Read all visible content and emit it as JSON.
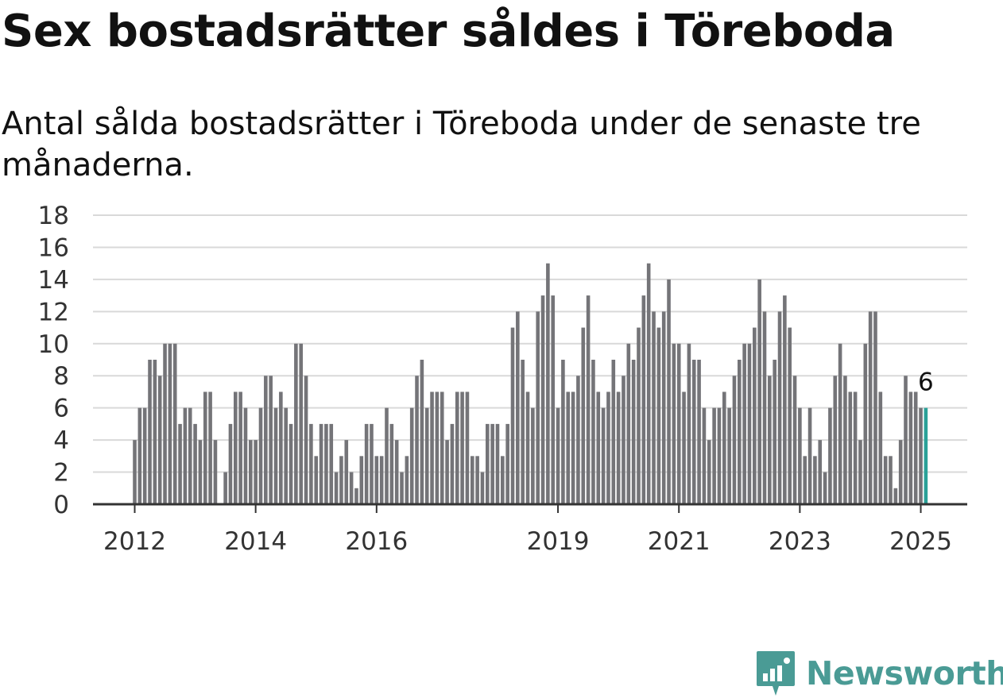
{
  "title": "Sex bostadsrätter såldes i Töreboda",
  "subtitle": "Antal sålda bostadsrätter i Töreboda under de senaste tre månaderna.",
  "brand": "Newsworthy",
  "colors": {
    "bar": "#747478",
    "highlight": "#2aa198",
    "grid": "#d9d9d9",
    "axis": "#333333",
    "brand": "#4a9b95"
  },
  "chart_data": {
    "type": "bar",
    "x_start": "2012-01",
    "x_interval": "month",
    "values": [
      4,
      6,
      6,
      9,
      9,
      8,
      10,
      10,
      10,
      5,
      6,
      6,
      5,
      4,
      7,
      7,
      4,
      0,
      2,
      5,
      7,
      7,
      6,
      4,
      4,
      6,
      8,
      8,
      6,
      7,
      6,
      5,
      10,
      10,
      8,
      5,
      3,
      5,
      5,
      5,
      2,
      3,
      4,
      2,
      1,
      3,
      5,
      5,
      3,
      3,
      6,
      5,
      4,
      2,
      3,
      6,
      8,
      9,
      6,
      7,
      7,
      7,
      4,
      5,
      7,
      7,
      7,
      3,
      3,
      2,
      5,
      5,
      5,
      3,
      5,
      11,
      12,
      9,
      7,
      6,
      12,
      13,
      15,
      13,
      6,
      9,
      7,
      7,
      8,
      11,
      13,
      9,
      7,
      6,
      7,
      9,
      7,
      8,
      10,
      9,
      11,
      13,
      15,
      12,
      11,
      12,
      14,
      10,
      10,
      7,
      10,
      9,
      9,
      6,
      4,
      6,
      6,
      7,
      6,
      8,
      9,
      10,
      10,
      11,
      14,
      12,
      8,
      9,
      12,
      13,
      11,
      8,
      6,
      3,
      6,
      3,
      4,
      2,
      6,
      8,
      10,
      8,
      7,
      7,
      4,
      10,
      12,
      12,
      7,
      3,
      3,
      1,
      4,
      8,
      7,
      7,
      6,
      6
    ],
    "highlight": {
      "value": 6,
      "label": "6"
    },
    "xticks": [
      "2012",
      "2014",
      "2016",
      "2019",
      "2021",
      "2023",
      "2025"
    ],
    "yticks": [
      "0",
      "2",
      "4",
      "6",
      "8",
      "10",
      "12",
      "14",
      "16",
      "18"
    ],
    "ylim": [
      0,
      18
    ],
    "grid": true
  }
}
